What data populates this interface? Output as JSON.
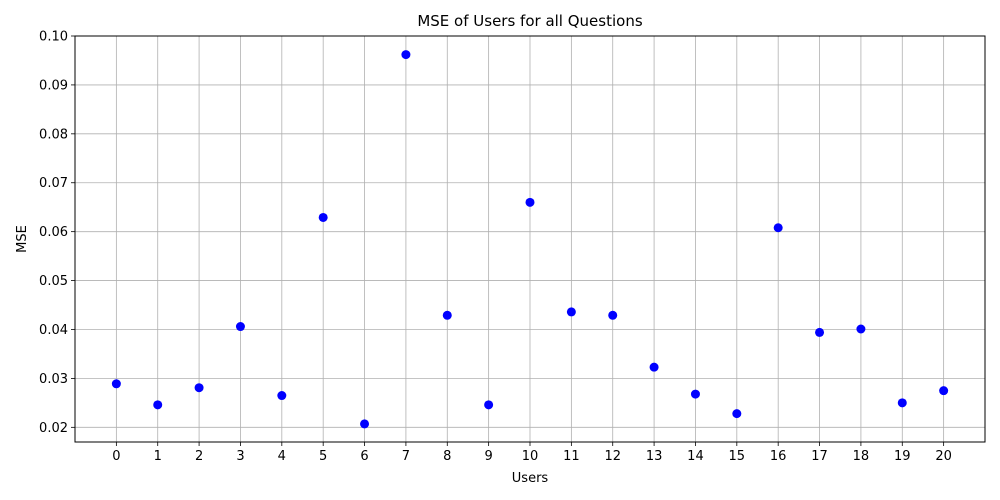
{
  "chart_data": {
    "type": "scatter",
    "title": "MSE of Users for all Questions",
    "xlabel": "Users",
    "ylabel": "MSE",
    "x": [
      0,
      1,
      2,
      3,
      4,
      5,
      6,
      7,
      8,
      9,
      10,
      11,
      12,
      13,
      14,
      15,
      16,
      17,
      18,
      19,
      20
    ],
    "y": [
      0.0289,
      0.0246,
      0.0281,
      0.0406,
      0.0265,
      0.0629,
      0.0207,
      0.0962,
      0.0429,
      0.0246,
      0.066,
      0.0436,
      0.0429,
      0.0323,
      0.0268,
      0.0228,
      0.0608,
      0.0394,
      0.0401,
      0.025,
      0.0275
    ],
    "xticks": [
      "0",
      "1",
      "2",
      "3",
      "4",
      "5",
      "6",
      "7",
      "8",
      "9",
      "10",
      "11",
      "12",
      "13",
      "14",
      "15",
      "16",
      "17",
      "18",
      "19",
      "20"
    ],
    "yticks": [
      "0.02",
      "0.03",
      "0.04",
      "0.05",
      "0.06",
      "0.07",
      "0.08",
      "0.09",
      "0.10"
    ],
    "xlim": [
      -1.0,
      21.0
    ],
    "ylim": [
      0.017,
      0.1
    ],
    "grid": true,
    "marker_color": "#0000ff"
  }
}
